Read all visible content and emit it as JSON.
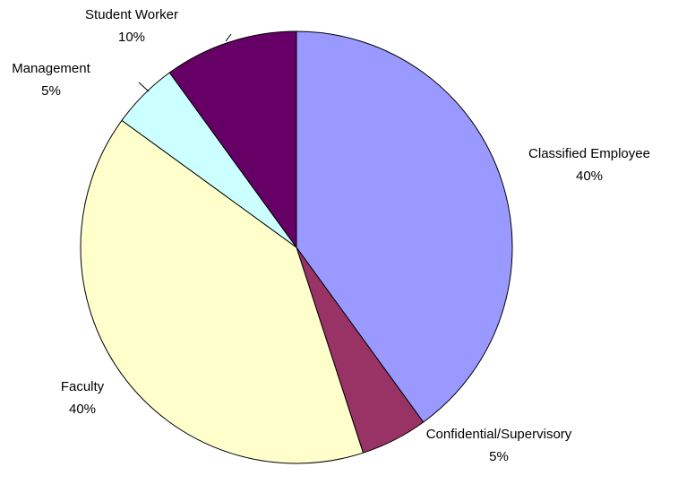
{
  "chart_data": {
    "type": "pie",
    "categories": [
      "Classified Employee",
      "Confidential/Supervisory",
      "Faculty",
      "Management",
      "Student Worker"
    ],
    "values": [
      40,
      5,
      40,
      5,
      10
    ],
    "value_labels": [
      "40%",
      "5%",
      "40%",
      "5%",
      "10%"
    ],
    "colors": [
      "#9999ff",
      "#993366",
      "#ffffcc",
      "#ccffff",
      "#660066"
    ]
  }
}
